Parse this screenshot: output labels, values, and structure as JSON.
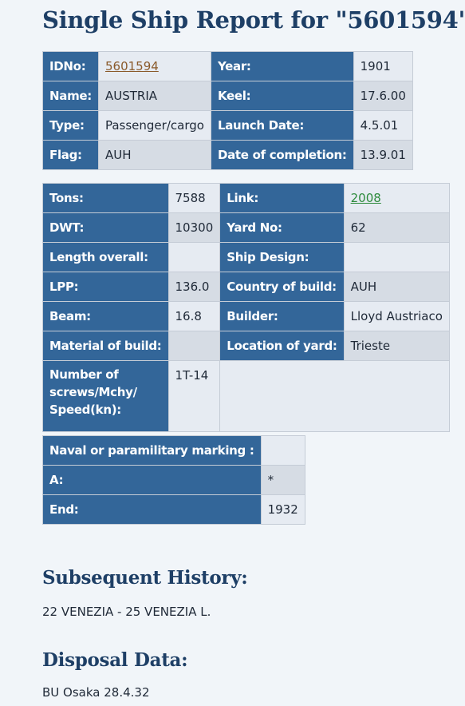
{
  "title": "Single Ship Report for \"5601594\"",
  "table1": {
    "idno_label": "IDNo:",
    "idno_value": "5601594",
    "year_label": "Year:",
    "year_value": "1901",
    "name_label": "Name:",
    "name_value": "AUSTRIA",
    "keel_label": "Keel:",
    "keel_value": "17.6.00",
    "type_label": "Type:",
    "type_value": "Passenger/cargo",
    "launch_label": "Launch Date:",
    "launch_value": "4.5.01",
    "flag_label": "Flag:",
    "flag_value": "AUH",
    "completion_label": "Date of completion:",
    "completion_value": "13.9.01"
  },
  "table2": {
    "tons_label": "Tons:",
    "tons_value": "7588",
    "link_label": "Link:",
    "link_value": "2008",
    "dwt_label": "DWT:",
    "dwt_value": "10300",
    "yard_label": "Yard No:",
    "yard_value": "62",
    "length_label": "Length overall:",
    "length_value": "",
    "design_label": "Ship Design:",
    "design_value": "",
    "lpp_label": "LPP:",
    "lpp_value": "136.0",
    "country_label": "Country of build:",
    "country_value": "AUH",
    "beam_label": "Beam:",
    "beam_value": "16.8",
    "builder_label": "Builder:",
    "builder_value": "Lloyd Austriaco",
    "material_label": "Material of build:",
    "material_value": "",
    "location_label": "Location of yard:",
    "location_value": "Trieste",
    "screws_label_1": "Number of",
    "screws_label_2": "screws/Mchy/",
    "screws_label_3": "Speed(kn):",
    "screws_value": "1T-14"
  },
  "table3": {
    "naval_label": "Naval or paramilitary marking :",
    "naval_value": "",
    "a_label": "A:",
    "a_value": "*",
    "end_label": "End:",
    "end_value": "1932"
  },
  "history": {
    "heading": "Subsequent History:",
    "text": "22 VENEZIA - 25 VENEZIA L."
  },
  "disposal": {
    "heading": "Disposal Data:",
    "text": "BU Osaka 28.4.32"
  }
}
